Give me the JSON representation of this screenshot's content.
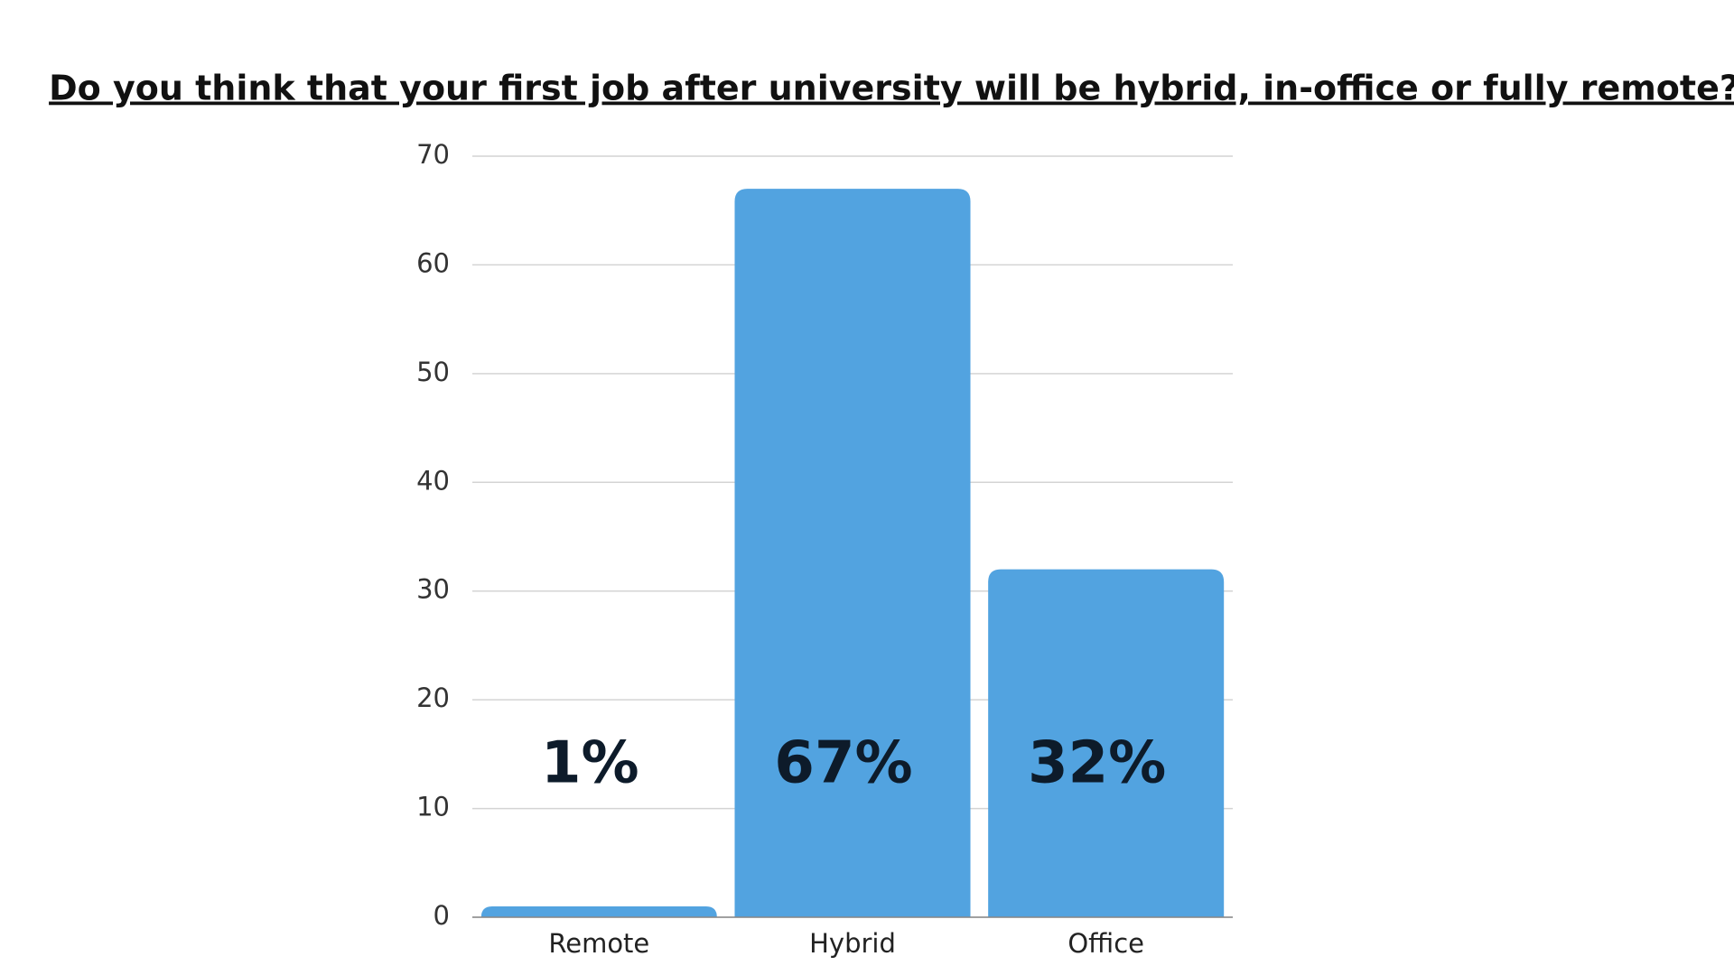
{
  "chart_data": {
    "type": "bar",
    "title": "Do you think that your first job after university will be hybrid, in-office or fully remote?",
    "categories": [
      "Remote",
      "Hybrid",
      "Office"
    ],
    "values": [
      1,
      67,
      32
    ],
    "value_labels": [
      "1%",
      "67%",
      "32%"
    ],
    "color": "#52a3e0",
    "ylim": [
      0,
      70
    ],
    "yticks": [
      0,
      10,
      20,
      30,
      40,
      50,
      60,
      70
    ],
    "grid": true
  }
}
